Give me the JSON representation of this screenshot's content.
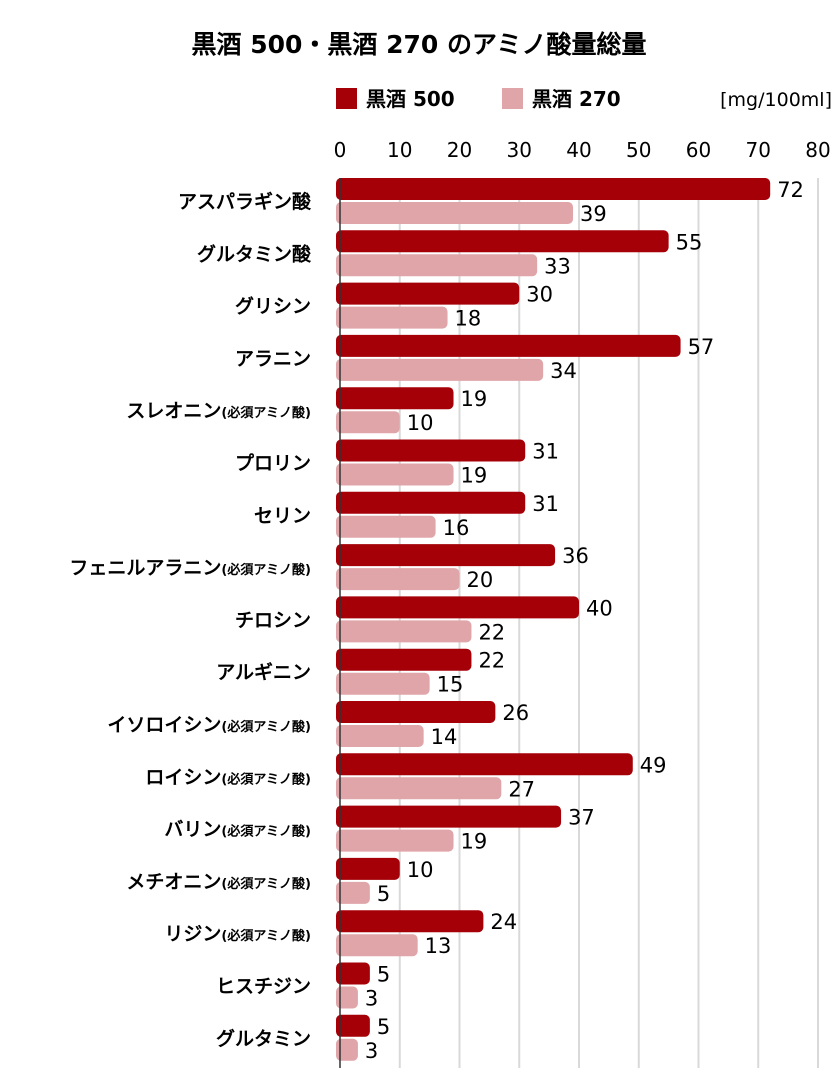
{
  "chart_data": {
    "type": "bar",
    "orientation": "horizontal",
    "title": "黒酒 500・黒酒 270 のアミノ酸量総量",
    "unit": "[mg/100ml]",
    "xlim": [
      0,
      80
    ],
    "xticks": [
      "0",
      "10",
      "20",
      "30",
      "40",
      "50",
      "60",
      "70",
      "80"
    ],
    "grid": true,
    "legend_position": "top",
    "categories": [
      {
        "name": "アスパラギン酸",
        "note": ""
      },
      {
        "name": "グルタミン酸",
        "note": ""
      },
      {
        "name": "グリシン",
        "note": ""
      },
      {
        "name": "アラニン",
        "note": ""
      },
      {
        "name": "スレオニン",
        "note": "(必須アミノ酸)"
      },
      {
        "name": "プロリン",
        "note": ""
      },
      {
        "name": "セリン",
        "note": ""
      },
      {
        "name": "フェニルアラニン",
        "note": "(必須アミノ酸)"
      },
      {
        "name": "チロシン",
        "note": ""
      },
      {
        "name": "アルギニン",
        "note": ""
      },
      {
        "name": "イソロイシン",
        "note": "(必須アミノ酸)"
      },
      {
        "name": "ロイシン",
        "note": "(必須アミノ酸)"
      },
      {
        "name": "バリン",
        "note": "(必須アミノ酸)"
      },
      {
        "name": "メチオニン",
        "note": "(必須アミノ酸)"
      },
      {
        "name": "リジン",
        "note": "(必須アミノ酸)"
      },
      {
        "name": "ヒスチジン",
        "note": ""
      },
      {
        "name": "グルタミン",
        "note": ""
      }
    ],
    "series": [
      {
        "name": "黒酒 500",
        "color": "#a50008",
        "values": [
          72,
          55,
          30,
          57,
          19,
          31,
          31,
          36,
          40,
          22,
          26,
          49,
          37,
          10,
          24,
          5,
          5
        ]
      },
      {
        "name": "黒酒 270",
        "color": "#e0a5a8",
        "values": [
          39,
          33,
          18,
          34,
          10,
          19,
          16,
          20,
          22,
          15,
          14,
          27,
          19,
          5,
          13,
          3,
          3
        ]
      }
    ]
  }
}
